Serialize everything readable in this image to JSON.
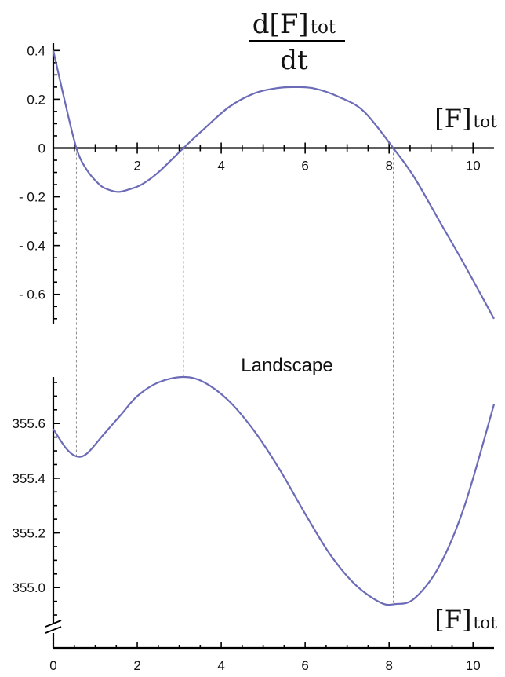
{
  "chart_data": [
    {
      "type": "line",
      "title": "",
      "ylabel_num": "d[F]tot",
      "ylabel_den": "dt",
      "xlabel": "[F]tot",
      "xlim": [
        0,
        10.5
      ],
      "ylim": [
        -0.72,
        0.43
      ],
      "x_ticks": [
        2,
        4,
        6,
        8,
        10
      ],
      "x_tick_labels": [
        "2",
        "4",
        "6",
        "8",
        "10"
      ],
      "y_ticks": [
        0.4,
        0.2,
        0,
        -0.2,
        -0.4,
        -0.6
      ],
      "y_tick_labels": [
        "0.4",
        "0.2",
        "0",
        "- 0.2",
        "- 0.4",
        "- 0.6"
      ],
      "grid": false,
      "color": "#6b6bb8",
      "series": [
        {
          "x": [
            0,
            0.25,
            0.55,
            0.8,
            1.1,
            1.3,
            1.55,
            1.8,
            2.1,
            2.5,
            3.1,
            3.6,
            4.2,
            4.8,
            5.3,
            5.7,
            6.2,
            6.8,
            7.4,
            8.1,
            8.6,
            9.2,
            9.8,
            10.5
          ],
          "y": [
            0.4,
            0.21,
            0.0,
            -0.09,
            -0.15,
            -0.17,
            -0.18,
            -0.17,
            -0.15,
            -0.1,
            0.0,
            0.08,
            0.17,
            0.225,
            0.245,
            0.25,
            0.245,
            0.21,
            0.15,
            0.0,
            -0.12,
            -0.3,
            -0.48,
            -0.7
          ]
        }
      ]
    },
    {
      "type": "line",
      "title": "Landscape",
      "xlabel": "[F]tot",
      "xlim": [
        0,
        10.5
      ],
      "ylim": [
        354.88,
        355.77
      ],
      "x_ticks": [
        0,
        2,
        4,
        6,
        8,
        10
      ],
      "x_tick_labels": [
        "0",
        "2",
        "4",
        "6",
        "8",
        "10"
      ],
      "y_ticks": [
        355.6,
        355.4,
        355.2,
        355.0
      ],
      "y_tick_labels": [
        "355.6",
        "355.4",
        "355.2",
        "355.0"
      ],
      "axis_break": true,
      "grid": false,
      "color": "#6b6bb8",
      "series": [
        {
          "x": [
            0,
            0.3,
            0.55,
            0.8,
            1.2,
            1.6,
            2.0,
            2.5,
            3.1,
            3.6,
            4.2,
            4.8,
            5.4,
            6.0,
            6.6,
            7.2,
            7.8,
            8.15,
            8.6,
            9.2,
            9.8,
            10.5
          ],
          "y": [
            355.58,
            355.51,
            355.48,
            355.49,
            355.56,
            355.63,
            355.7,
            355.75,
            355.77,
            355.75,
            355.68,
            355.57,
            355.43,
            355.27,
            355.12,
            355.01,
            354.945,
            354.94,
            354.96,
            355.08,
            355.3,
            355.67
          ]
        }
      ]
    }
  ]
}
